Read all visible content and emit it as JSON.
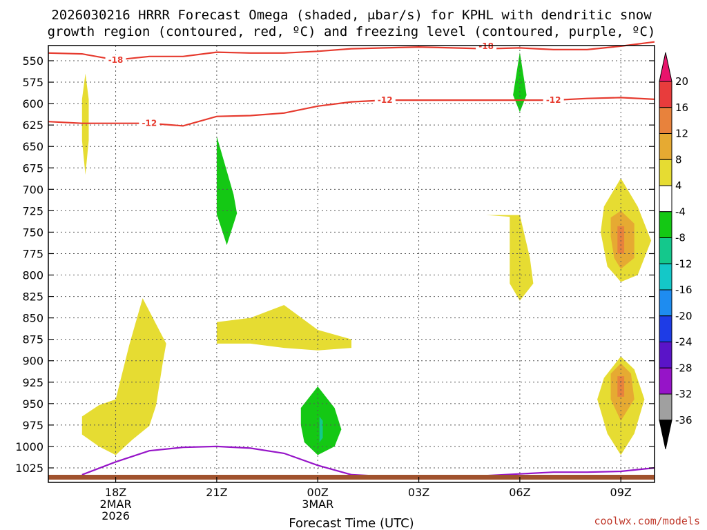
{
  "chart_data": {
    "type": "heatmap",
    "title_line1": "2026030216 HRRR Forecast Omega (shaded, μbar/s) for KPHL with dendritic snow",
    "title_line2": "growth region (contoured, red, ºC) and freezing level (contoured, purple, ºC)",
    "xlabel": "Forecast Time (UTC)",
    "credit": "coolwx.com/models",
    "x_range_hours": [
      0,
      18
    ],
    "y_levels": [
      550,
      575,
      600,
      625,
      650,
      675,
      700,
      725,
      750,
      775,
      800,
      825,
      850,
      875,
      900,
      925,
      950,
      975,
      1000,
      1025
    ],
    "y_tick_labels": [
      "550",
      "575",
      "600",
      "625",
      "650",
      "675",
      "700",
      "725",
      "750",
      "775",
      "800",
      "825",
      "850",
      "875",
      "900",
      "925",
      "950",
      "975",
      "1000",
      "1025"
    ],
    "x_ticks": [
      {
        "hour": 2,
        "lines": [
          "18Z",
          "2MAR",
          "2026"
        ]
      },
      {
        "hour": 5,
        "lines": [
          "21Z"
        ]
      },
      {
        "hour": 8,
        "lines": [
          "00Z",
          "3MAR"
        ]
      },
      {
        "hour": 11,
        "lines": [
          "03Z"
        ]
      },
      {
        "hour": 14,
        "lines": [
          "06Z"
        ]
      },
      {
        "hour": 17,
        "lines": [
          "09Z"
        ]
      }
    ],
    "colorbar": {
      "labels": [
        "20",
        "16",
        "12",
        "8",
        "4",
        "-4",
        "-8",
        "-12",
        "-16",
        "-20",
        "-24",
        "-28",
        "-32",
        "-36"
      ],
      "colors": [
        "#e8146c",
        "#e83c3c",
        "#e8823c",
        "#e6aa32",
        "#e6dc32",
        "#ffffff",
        "#14c814",
        "#14c88c",
        "#14c8c8",
        "#1e8cf0",
        "#1e3ce6",
        "#5a14c8",
        "#9614c8",
        "#a0a0a0",
        "#000000"
      ]
    },
    "contours": [
      {
        "name": "-18 C",
        "color": "#e63a2e",
        "label": "-18",
        "points": [
          [
            0,
            541
          ],
          [
            1,
            542
          ],
          [
            2,
            549
          ],
          [
            3,
            545
          ],
          [
            4,
            545
          ],
          [
            5,
            540
          ],
          [
            6,
            541
          ],
          [
            7,
            541
          ],
          [
            8,
            539
          ],
          [
            9,
            536
          ],
          [
            10,
            535
          ],
          [
            11,
            534
          ],
          [
            12,
            535
          ],
          [
            13,
            536
          ],
          [
            14,
            535
          ],
          [
            15,
            537
          ],
          [
            16,
            537
          ],
          [
            17,
            533
          ],
          [
            18,
            528
          ]
        ],
        "label_at": [
          [
            2,
            549
          ],
          [
            13,
            533
          ]
        ]
      },
      {
        "name": "-12 C",
        "color": "#e63a2e",
        "label": "-12",
        "points": [
          [
            0,
            621
          ],
          [
            1,
            623
          ],
          [
            2,
            623
          ],
          [
            3,
            623
          ],
          [
            4,
            626
          ],
          [
            5,
            615
          ],
          [
            6,
            614
          ],
          [
            7,
            611
          ],
          [
            8,
            603
          ],
          [
            9,
            598
          ],
          [
            10,
            596
          ],
          [
            11,
            596
          ],
          [
            12,
            596
          ],
          [
            13,
            596
          ],
          [
            14,
            596
          ],
          [
            15,
            596
          ],
          [
            16,
            594
          ],
          [
            17,
            593
          ],
          [
            18,
            595
          ]
        ],
        "label_at": [
          [
            3,
            623
          ],
          [
            10,
            596
          ],
          [
            15,
            596
          ]
        ]
      },
      {
        "name": "freezing level",
        "color": "#9614c8",
        "label": "",
        "points": [
          [
            1,
            1033
          ],
          [
            2,
            1018
          ],
          [
            3,
            1005
          ],
          [
            4,
            1001
          ],
          [
            5,
            1000
          ],
          [
            6,
            1002
          ],
          [
            7,
            1008
          ],
          [
            8,
            1022
          ],
          [
            9,
            1033
          ],
          [
            10,
            1035
          ],
          [
            11,
            1036
          ],
          [
            12,
            1035
          ],
          [
            13,
            1034
          ],
          [
            14,
            1032
          ],
          [
            15,
            1030
          ],
          [
            16,
            1030
          ],
          [
            17,
            1029
          ],
          [
            18,
            1025
          ]
        ],
        "label_at": []
      }
    ],
    "shaded_regions": [
      {
        "value": 6,
        "color": "#e6dc32",
        "points": [
          [
            1,
            643
          ],
          [
            1,
            595
          ],
          [
            1.1,
            565
          ],
          [
            1.2,
            595
          ],
          [
            1.2,
            643
          ],
          [
            1.1,
            683
          ]
        ]
      },
      {
        "value": -6,
        "color": "#14c814",
        "points": [
          [
            5,
            638
          ],
          [
            5.5,
            706
          ],
          [
            5.6,
            728
          ],
          [
            5.3,
            765
          ],
          [
            5,
            729
          ],
          [
            5,
            707
          ]
        ]
      },
      {
        "value": 6,
        "color": "#e6dc32",
        "points": [
          [
            1,
            965
          ],
          [
            1.5,
            952
          ],
          [
            2,
            945
          ],
          [
            2.4,
            882
          ],
          [
            2.8,
            827
          ],
          [
            3.5,
            880
          ],
          [
            3.4,
            902
          ],
          [
            3.2,
            952
          ],
          [
            3,
            976
          ],
          [
            2.5,
            992
          ],
          [
            2,
            1010
          ],
          [
            1.5,
            1000
          ],
          [
            1,
            986
          ]
        ]
      },
      {
        "value": 6,
        "color": "#e6dc32",
        "points": [
          [
            5,
            855
          ],
          [
            6,
            850
          ],
          [
            7,
            835
          ],
          [
            8,
            864
          ],
          [
            9,
            875
          ],
          [
            9,
            885
          ],
          [
            8,
            888
          ],
          [
            7,
            885
          ],
          [
            6,
            880
          ],
          [
            5,
            880
          ]
        ]
      },
      {
        "value": -6,
        "color": "#14c814",
        "points": [
          [
            7.5,
            955
          ],
          [
            8,
            930
          ],
          [
            8.5,
            955
          ],
          [
            8.7,
            980
          ],
          [
            8.5,
            1000
          ],
          [
            8,
            1010
          ],
          [
            7.6,
            995
          ],
          [
            7.5,
            975
          ]
        ]
      },
      {
        "value": -10,
        "color": "#14c88c",
        "points": [
          [
            8.05,
            965
          ],
          [
            8.15,
            970
          ],
          [
            8.15,
            990
          ],
          [
            8.05,
            995
          ]
        ]
      },
      {
        "value": -6,
        "color": "#14c814",
        "points": [
          [
            14,
            540
          ],
          [
            14.2,
            590
          ],
          [
            14,
            610
          ],
          [
            13.8,
            590
          ]
        ]
      },
      {
        "value": 6,
        "color": "#e6dc32",
        "points": [
          [
            13,
            730
          ],
          [
            14,
            730
          ],
          [
            14.3,
            780
          ],
          [
            14.4,
            810
          ],
          [
            14,
            830
          ],
          [
            13.7,
            810
          ],
          [
            13.7,
            760
          ],
          [
            13.7,
            732
          ]
        ]
      },
      {
        "value": 6,
        "color": "#e6dc32",
        "points": [
          [
            16.5,
            720
          ],
          [
            17,
            687
          ],
          [
            17.5,
            720
          ],
          [
            17.9,
            760
          ],
          [
            17.5,
            800
          ],
          [
            17,
            808
          ],
          [
            16.6,
            790
          ],
          [
            16.4,
            750
          ]
        ]
      },
      {
        "value": 10,
        "color": "#e6aa32",
        "points": [
          [
            16.7,
            733
          ],
          [
            17,
            725
          ],
          [
            17.4,
            740
          ],
          [
            17.4,
            780
          ],
          [
            17,
            793
          ],
          [
            16.8,
            780
          ],
          [
            16.7,
            755
          ]
        ]
      },
      {
        "value": 14,
        "color": "#e8823c",
        "points": [
          [
            16.9,
            743
          ],
          [
            17.1,
            743
          ],
          [
            17.1,
            775
          ],
          [
            16.9,
            775
          ]
        ]
      },
      {
        "value": 6,
        "color": "#e6dc32",
        "points": [
          [
            16.5,
            920
          ],
          [
            17,
            895
          ],
          [
            17.4,
            910
          ],
          [
            17.7,
            945
          ],
          [
            17.4,
            985
          ],
          [
            17,
            1010
          ],
          [
            16.6,
            985
          ],
          [
            16.3,
            945
          ]
        ]
      },
      {
        "value": 10,
        "color": "#e6aa32",
        "points": [
          [
            16.7,
            915
          ],
          [
            17,
            903
          ],
          [
            17.3,
            915
          ],
          [
            17.4,
            945
          ],
          [
            17,
            970
          ],
          [
            16.7,
            945
          ]
        ]
      },
      {
        "value": 14,
        "color": "#e8823c",
        "points": [
          [
            16.9,
            918
          ],
          [
            17.1,
            918
          ],
          [
            17.1,
            942
          ],
          [
            16.9,
            942
          ]
        ]
      }
    ]
  }
}
